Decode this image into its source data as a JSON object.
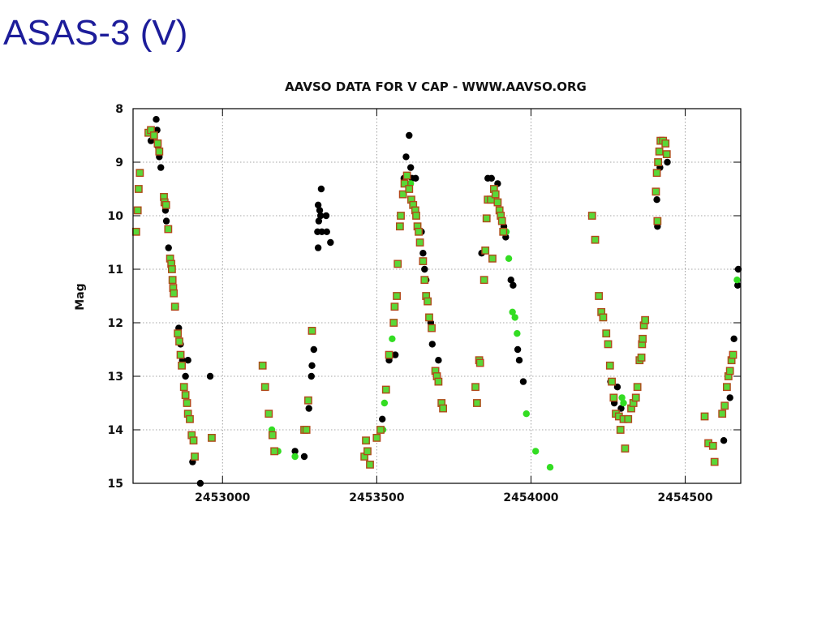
{
  "slide": {
    "title": "ASAS-3 (V)"
  },
  "colors": {
    "black_marker": "#000000",
    "green_marker": "#33dd22",
    "square_edge": "#b04a1a",
    "square_fill": "#5ad838",
    "grid": "#888888"
  },
  "chart_data": {
    "type": "scatter",
    "title": "AAVSO DATA FOR V CAP - WWW.AAVSO.ORG",
    "xlabel": "",
    "ylabel": "Mag",
    "xlim": [
      2452710,
      2454680
    ],
    "ylim": [
      15,
      8
    ],
    "y_inverted": true,
    "grid": true,
    "x_ticks": [
      2453000,
      2453500,
      2454000,
      2454500
    ],
    "y_ticks": [
      8,
      9,
      10,
      11,
      12,
      13,
      14,
      15
    ],
    "series": [
      {
        "marker": "black-dot",
        "points": [
          [
            2452768,
            8.6
          ],
          [
            2452785,
            8.2
          ],
          [
            2452788,
            8.4
          ],
          [
            2452790,
            8.7
          ],
          [
            2452795,
            8.9
          ],
          [
            2452800,
            9.1
          ],
          [
            2452815,
            9.9
          ],
          [
            2452818,
            10.1
          ],
          [
            2452825,
            10.6
          ],
          [
            2452848,
            11.7
          ],
          [
            2452858,
            12.1
          ],
          [
            2452864,
            12.4
          ],
          [
            2452870,
            12.7
          ],
          [
            2452880,
            13.0
          ],
          [
            2452888,
            12.7
          ],
          [
            2452903,
            14.6
          ],
          [
            2452928,
            15.0
          ],
          [
            2452960,
            13.0
          ],
          [
            2453235,
            14.4
          ],
          [
            2453265,
            14.5
          ],
          [
            2453280,
            13.6
          ],
          [
            2453288,
            13.0
          ],
          [
            2453290,
            12.8
          ],
          [
            2453296,
            12.5
          ],
          [
            2453308,
            10.3
          ],
          [
            2453310,
            9.8
          ],
          [
            2453312,
            10.1
          ],
          [
            2453315,
            9.9
          ],
          [
            2453318,
            10.0
          ],
          [
            2453320,
            9.5
          ],
          [
            2453322,
            10.3
          ],
          [
            2453336,
            10.0
          ],
          [
            2453338,
            10.3
          ],
          [
            2453350,
            10.5
          ],
          [
            2453310,
            10.6
          ],
          [
            2453518,
            13.8
          ],
          [
            2453540,
            12.7
          ],
          [
            2453560,
            12.6
          ],
          [
            2453588,
            9.3
          ],
          [
            2453595,
            8.9
          ],
          [
            2453605,
            8.5
          ],
          [
            2453610,
            9.1
          ],
          [
            2453614,
            9.3
          ],
          [
            2453626,
            9.3
          ],
          [
            2453645,
            10.3
          ],
          [
            2453650,
            10.7
          ],
          [
            2453655,
            11.0
          ],
          [
            2453660,
            11.2
          ],
          [
            2453675,
            12.0
          ],
          [
            2453680,
            12.4
          ],
          [
            2453700,
            12.7
          ],
          [
            2453840,
            10.7
          ],
          [
            2453860,
            9.3
          ],
          [
            2453872,
            9.3
          ],
          [
            2453892,
            9.4
          ],
          [
            2453912,
            10.2
          ],
          [
            2453918,
            10.4
          ],
          [
            2453935,
            11.2
          ],
          [
            2453942,
            11.3
          ],
          [
            2453957,
            12.5
          ],
          [
            2453962,
            12.7
          ],
          [
            2453975,
            13.1
          ],
          [
            2454258,
            13.1
          ],
          [
            2454270,
            13.5
          ],
          [
            2454280,
            13.2
          ],
          [
            2454292,
            13.6
          ],
          [
            2454408,
            9.7
          ],
          [
            2454410,
            10.2
          ],
          [
            2454418,
            9.1
          ],
          [
            2454425,
            8.6
          ],
          [
            2454442,
            9.0
          ],
          [
            2454625,
            14.2
          ],
          [
            2454645,
            13.4
          ],
          [
            2454658,
            12.3
          ],
          [
            2454670,
            11.3
          ],
          [
            2454672,
            11.0
          ]
        ]
      },
      {
        "marker": "green-dot",
        "points": [
          [
            2453180,
            14.4
          ],
          [
            2453235,
            14.5
          ],
          [
            2453160,
            14.0
          ],
          [
            2453550,
            12.3
          ],
          [
            2453525,
            13.5
          ],
          [
            2453520,
            14.0
          ],
          [
            2453610,
            9.4
          ],
          [
            2453920,
            10.3
          ],
          [
            2453928,
            10.8
          ],
          [
            2453940,
            11.8
          ],
          [
            2453948,
            11.9
          ],
          [
            2453955,
            12.2
          ],
          [
            2453985,
            13.7
          ],
          [
            2454015,
            14.4
          ],
          [
            2454062,
            14.7
          ],
          [
            2454295,
            13.4
          ],
          [
            2454300,
            13.5
          ],
          [
            2454668,
            11.2
          ]
        ]
      },
      {
        "marker": "green-square",
        "points": [
          [
            2452720,
            10.3
          ],
          [
            2452725,
            9.9
          ],
          [
            2452728,
            9.5
          ],
          [
            2452732,
            9.2
          ],
          [
            2452760,
            8.45
          ],
          [
            2452768,
            8.4
          ],
          [
            2452778,
            8.5
          ],
          [
            2452790,
            8.65
          ],
          [
            2452795,
            8.8
          ],
          [
            2452810,
            9.65
          ],
          [
            2452812,
            9.75
          ],
          [
            2452817,
            9.8
          ],
          [
            2452824,
            10.25
          ],
          [
            2452830,
            10.8
          ],
          [
            2452834,
            10.9
          ],
          [
            2452836,
            11.0
          ],
          [
            2452838,
            11.2
          ],
          [
            2452840,
            11.35
          ],
          [
            2452842,
            11.45
          ],
          [
            2452846,
            11.7
          ],
          [
            2452855,
            12.2
          ],
          [
            2452860,
            12.35
          ],
          [
            2452864,
            12.6
          ],
          [
            2452868,
            12.8
          ],
          [
            2452875,
            13.2
          ],
          [
            2452880,
            13.35
          ],
          [
            2452885,
            13.5
          ],
          [
            2452888,
            13.7
          ],
          [
            2452894,
            13.8
          ],
          [
            2452900,
            14.1
          ],
          [
            2452906,
            14.2
          ],
          [
            2452910,
            14.5
          ],
          [
            2452965,
            14.15
          ],
          [
            2453130,
            12.8
          ],
          [
            2453138,
            13.2
          ],
          [
            2453150,
            13.7
          ],
          [
            2453162,
            14.1
          ],
          [
            2453168,
            14.4
          ],
          [
            2453265,
            14.0
          ],
          [
            2453272,
            14.0
          ],
          [
            2453278,
            13.45
          ],
          [
            2453290,
            12.15
          ],
          [
            2453460,
            14.5
          ],
          [
            2453465,
            14.2
          ],
          [
            2453470,
            14.4
          ],
          [
            2453478,
            14.65
          ],
          [
            2453500,
            14.15
          ],
          [
            2453512,
            14.0
          ],
          [
            2453530,
            13.25
          ],
          [
            2453540,
            12.6
          ],
          [
            2453555,
            12.0
          ],
          [
            2453558,
            11.7
          ],
          [
            2453565,
            11.5
          ],
          [
            2453568,
            10.9
          ],
          [
            2453575,
            10.2
          ],
          [
            2453578,
            10.0
          ],
          [
            2453585,
            9.6
          ],
          [
            2453590,
            9.4
          ],
          [
            2453598,
            9.25
          ],
          [
            2453605,
            9.5
          ],
          [
            2453612,
            9.7
          ],
          [
            2453618,
            9.8
          ],
          [
            2453625,
            9.9
          ],
          [
            2453628,
            10.0
          ],
          [
            2453632,
            10.2
          ],
          [
            2453636,
            10.3
          ],
          [
            2453640,
            10.5
          ],
          [
            2453650,
            10.85
          ],
          [
            2453655,
            11.2
          ],
          [
            2453660,
            11.5
          ],
          [
            2453665,
            11.6
          ],
          [
            2453670,
            11.9
          ],
          [
            2453678,
            12.1
          ],
          [
            2453690,
            12.9
          ],
          [
            2453695,
            13.0
          ],
          [
            2453700,
            13.1
          ],
          [
            2453710,
            13.5
          ],
          [
            2453715,
            13.6
          ],
          [
            2453820,
            13.2
          ],
          [
            2453825,
            13.5
          ],
          [
            2453832,
            12.7
          ],
          [
            2453835,
            12.75
          ],
          [
            2453848,
            11.2
          ],
          [
            2453852,
            10.65
          ],
          [
            2453856,
            10.05
          ],
          [
            2453860,
            9.7
          ],
          [
            2453870,
            9.7
          ],
          [
            2453880,
            9.5
          ],
          [
            2453885,
            9.6
          ],
          [
            2453892,
            9.75
          ],
          [
            2453898,
            9.9
          ],
          [
            2453902,
            10.0
          ],
          [
            2453906,
            10.1
          ],
          [
            2453910,
            10.3
          ],
          [
            2453875,
            10.8
          ],
          [
            2454198,
            10.0
          ],
          [
            2454208,
            10.45
          ],
          [
            2454220,
            11.5
          ],
          [
            2454228,
            11.8
          ],
          [
            2454234,
            11.9
          ],
          [
            2454244,
            12.2
          ],
          [
            2454250,
            12.4
          ],
          [
            2454256,
            12.8
          ],
          [
            2454262,
            13.1
          ],
          [
            2454268,
            13.4
          ],
          [
            2454275,
            13.7
          ],
          [
            2454285,
            13.75
          ],
          [
            2454290,
            14.0
          ],
          [
            2454300,
            13.8
          ],
          [
            2454305,
            14.35
          ],
          [
            2454315,
            13.8
          ],
          [
            2454325,
            13.6
          ],
          [
            2454332,
            13.5
          ],
          [
            2454340,
            13.4
          ],
          [
            2454345,
            13.2
          ],
          [
            2454352,
            12.7
          ],
          [
            2454358,
            12.65
          ],
          [
            2454360,
            12.4
          ],
          [
            2454362,
            12.3
          ],
          [
            2454366,
            12.05
          ],
          [
            2454370,
            11.95
          ],
          [
            2454405,
            9.55
          ],
          [
            2454408,
            9.2
          ],
          [
            2454412,
            9.0
          ],
          [
            2454416,
            8.8
          ],
          [
            2454420,
            8.6
          ],
          [
            2454428,
            8.6
          ],
          [
            2454436,
            8.65
          ],
          [
            2454440,
            8.85
          ],
          [
            2454410,
            10.1
          ],
          [
            2454563,
            13.75
          ],
          [
            2454575,
            14.25
          ],
          [
            2454590,
            14.3
          ],
          [
            2454595,
            14.6
          ],
          [
            2454620,
            13.7
          ],
          [
            2454628,
            13.55
          ],
          [
            2454635,
            13.2
          ],
          [
            2454640,
            13.0
          ],
          [
            2454645,
            12.9
          ],
          [
            2454650,
            12.7
          ],
          [
            2454655,
            12.6
          ]
        ]
      }
    ]
  }
}
